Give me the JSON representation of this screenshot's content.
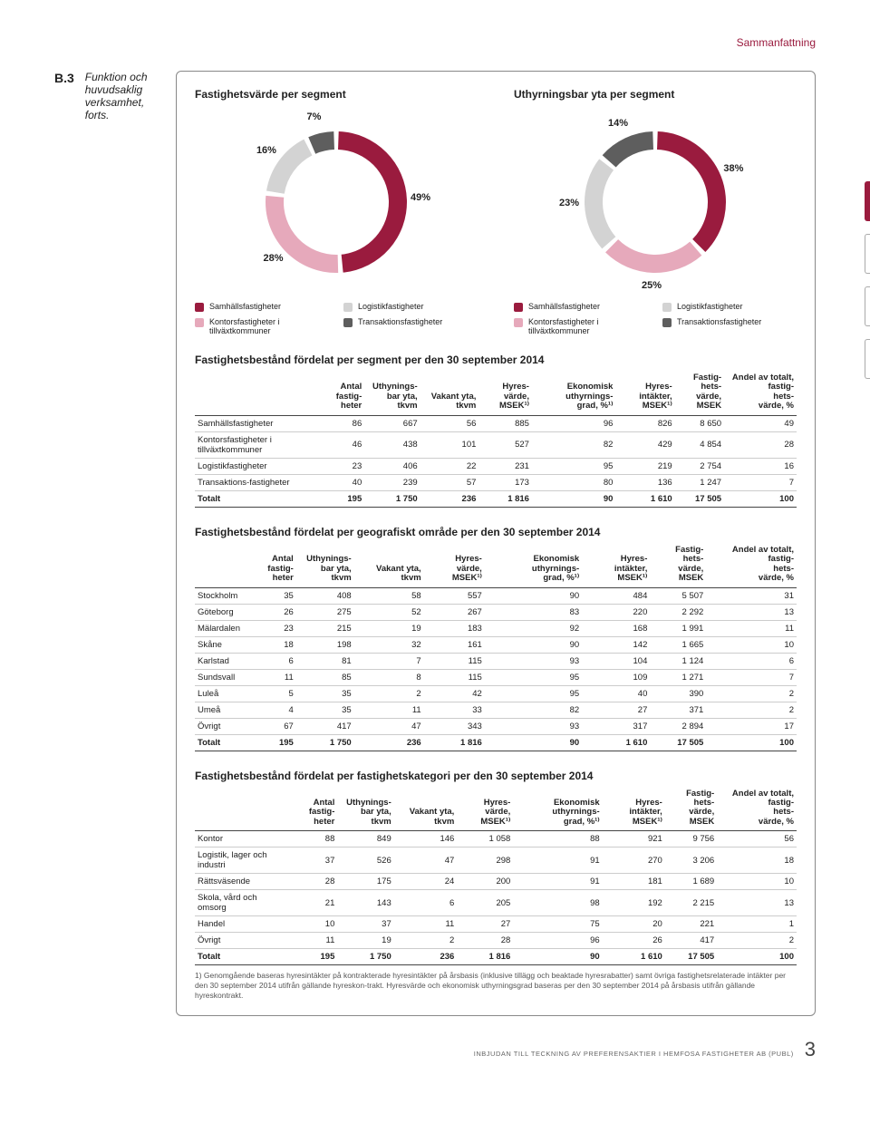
{
  "header": "Sammanfattning",
  "section_num": "B.3",
  "section_title": "Funktion och huvudsaklig verksamhet, forts.",
  "colors": {
    "c1": "#9a1b3e",
    "c2": "#e6a9bb",
    "c3": "#d3d3d3",
    "c4": "#5e5e5e"
  },
  "chart1": {
    "title": "Fastighetsvärde per segment",
    "slices": [
      {
        "label": "49%",
        "value": 49,
        "color": "#9a1b3e"
      },
      {
        "label": "28%",
        "value": 28,
        "color": "#e6a9bb"
      },
      {
        "label": "16%",
        "value": 16,
        "color": "#d3d3d3"
      },
      {
        "label": "7%",
        "value": 7,
        "color": "#5e5e5e"
      }
    ],
    "legend": [
      {
        "color": "#9a1b3e",
        "text": "Samhällsfastigheter"
      },
      {
        "color": "#d3d3d3",
        "text": "Logistikfastigheter"
      },
      {
        "color": "#e6a9bb",
        "text": "Kontorsfastigheter i tillväxtkommuner"
      },
      {
        "color": "#5e5e5e",
        "text": "Transaktionsfastigheter"
      }
    ]
  },
  "chart2": {
    "title": "Uthyrningsbar yta per segment",
    "slices": [
      {
        "label": "38%",
        "value": 38,
        "color": "#9a1b3e"
      },
      {
        "label": "25%",
        "value": 25,
        "color": "#e6a9bb"
      },
      {
        "label": "23%",
        "value": 23,
        "color": "#d3d3d3"
      },
      {
        "label": "14%",
        "value": 14,
        "color": "#5e5e5e"
      }
    ],
    "legend": [
      {
        "color": "#9a1b3e",
        "text": "Samhällsfastigheter"
      },
      {
        "color": "#d3d3d3",
        "text": "Logistikfastigheter"
      },
      {
        "color": "#e6a9bb",
        "text": "Kontorsfastigheter i tillväxtkommuner"
      },
      {
        "color": "#5e5e5e",
        "text": "Transaktionsfastigheter"
      }
    ]
  },
  "table_columns": [
    "",
    "Antal fastig-heter",
    "Uthynings-bar yta, tkvm",
    "Vakant yta, tkvm",
    "Hyres-värde, MSEK¹⁾",
    "Ekonomisk uthyrnings-grad, %¹⁾",
    "Hyres-intäkter, MSEK¹⁾",
    "Fastig-hets-värde, MSEK",
    "Andel av totalt, fastig-hets-värde, %"
  ],
  "table1": {
    "title": "Fastighetsbestånd fördelat per segment per den 30 september 2014",
    "rows": [
      [
        "Samhällsfastigheter",
        "86",
        "667",
        "56",
        "885",
        "96",
        "826",
        "8 650",
        "49"
      ],
      [
        "Kontorsfastigheter i tillväxtkommuner",
        "46",
        "438",
        "101",
        "527",
        "82",
        "429",
        "4 854",
        "28"
      ],
      [
        "Logistikfastigheter",
        "23",
        "406",
        "22",
        "231",
        "95",
        "219",
        "2 754",
        "16"
      ],
      [
        "Transaktions-fastigheter",
        "40",
        "239",
        "57",
        "173",
        "80",
        "136",
        "1 247",
        "7"
      ]
    ],
    "total": [
      "Totalt",
      "195",
      "1 750",
      "236",
      "1 816",
      "90",
      "1 610",
      "17 505",
      "100"
    ]
  },
  "table2": {
    "title": "Fastighetsbestånd fördelat per geografiskt område per den 30 september 2014",
    "rows": [
      [
        "Stockholm",
        "35",
        "408",
        "58",
        "557",
        "90",
        "484",
        "5 507",
        "31"
      ],
      [
        "Göteborg",
        "26",
        "275",
        "52",
        "267",
        "83",
        "220",
        "2 292",
        "13"
      ],
      [
        "Mälardalen",
        "23",
        "215",
        "19",
        "183",
        "92",
        "168",
        "1 991",
        "11"
      ],
      [
        "Skåne",
        "18",
        "198",
        "32",
        "161",
        "90",
        "142",
        "1 665",
        "10"
      ],
      [
        "Karlstad",
        "6",
        "81",
        "7",
        "115",
        "93",
        "104",
        "1 124",
        "6"
      ],
      [
        "Sundsvall",
        "11",
        "85",
        "8",
        "115",
        "95",
        "109",
        "1 271",
        "7"
      ],
      [
        "Luleå",
        "5",
        "35",
        "2",
        "42",
        "95",
        "40",
        "390",
        "2"
      ],
      [
        "Umeå",
        "4",
        "35",
        "11",
        "33",
        "82",
        "27",
        "371",
        "2"
      ],
      [
        "Övrigt",
        "67",
        "417",
        "47",
        "343",
        "93",
        "317",
        "2 894",
        "17"
      ]
    ],
    "total": [
      "Totalt",
      "195",
      "1 750",
      "236",
      "1 816",
      "90",
      "1 610",
      "17 505",
      "100"
    ]
  },
  "table3": {
    "title": "Fastighetsbestånd fördelat per fastighetskategori per den 30 september 2014",
    "rows": [
      [
        "Kontor",
        "88",
        "849",
        "146",
        "1 058",
        "88",
        "921",
        "9 756",
        "56"
      ],
      [
        "Logistik, lager och industri",
        "37",
        "526",
        "47",
        "298",
        "91",
        "270",
        "3 206",
        "18"
      ],
      [
        "Rättsväsende",
        "28",
        "175",
        "24",
        "200",
        "91",
        "181",
        "1 689",
        "10"
      ],
      [
        "Skola, vård och omsorg",
        "21",
        "143",
        "6",
        "205",
        "98",
        "192",
        "2 215",
        "13"
      ],
      [
        "Handel",
        "10",
        "37",
        "11",
        "27",
        "75",
        "20",
        "221",
        "1"
      ],
      [
        "Övrigt",
        "11",
        "19",
        "2",
        "28",
        "96",
        "26",
        "417",
        "2"
      ]
    ],
    "total": [
      "Totalt",
      "195",
      "1 750",
      "236",
      "1 816",
      "90",
      "1 610",
      "17 505",
      "100"
    ]
  },
  "footnote": "1) Genomgående baseras hyresintäkter på kontrakterade hyresintäkter på årsbasis (inklusive tillägg och beaktade hyresrabatter) samt övriga fastighetsrelaterade intäkter per den 30 september 2014 utifrån gällande hyreskon-trakt. Hyresvärde och ekonomisk uthyrningsgrad baseras per den 30 september 2014 på årsbasis utifrån gällande hyreskontrakt.",
  "footer_text": "INBJUDAN TILL TECKNING AV PREFERENSAKTIER I HEMFOSA FASTIGHETER AB (PUBL)",
  "page_num": "3"
}
